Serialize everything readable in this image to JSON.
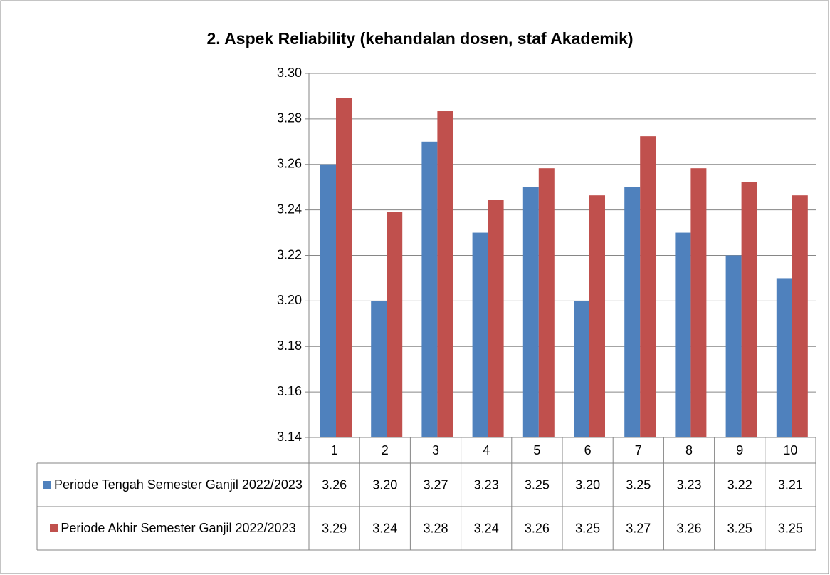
{
  "chart_data": {
    "type": "bar",
    "title": "2. Aspek Reliability (kehandalan dosen, staf Akademik)",
    "categories": [
      "1",
      "2",
      "3",
      "4",
      "5",
      "6",
      "7",
      "8",
      "9",
      "10"
    ],
    "series": [
      {
        "name": "Periode Tengah Semester Ganjil 2022/2023",
        "color": "#4f81bd",
        "values": [
          3.26,
          3.2,
          3.27,
          3.23,
          3.25,
          3.2,
          3.25,
          3.23,
          3.22,
          3.21
        ],
        "value_labels": [
          "3.26",
          "3.20",
          "3.27",
          "3.23",
          "3.25",
          "3.20",
          "3.25",
          "3.23",
          "3.22",
          "3.21"
        ]
      },
      {
        "name": "Periode Akhir Semester Ganjil 2022/2023",
        "color": "#c0504d",
        "values": [
          3.2893,
          3.2392,
          3.2834,
          3.2443,
          3.2583,
          3.2464,
          3.2724,
          3.2583,
          3.2524,
          3.2464
        ],
        "value_labels": [
          "3.29",
          "3.24",
          "3.28",
          "3.24",
          "3.26",
          "3.25",
          "3.27",
          "3.26",
          "3.25",
          "3.25"
        ]
      }
    ],
    "ylim": [
      3.14,
      3.3
    ],
    "yticks": [
      3.14,
      3.16,
      3.18,
      {
        "value": 3.2,
        "label": "3.20"
      },
      3.22,
      3.24,
      3.26,
      3.28,
      {
        "value": 3.3,
        "label": "3.30"
      }
    ],
    "grid": true
  }
}
